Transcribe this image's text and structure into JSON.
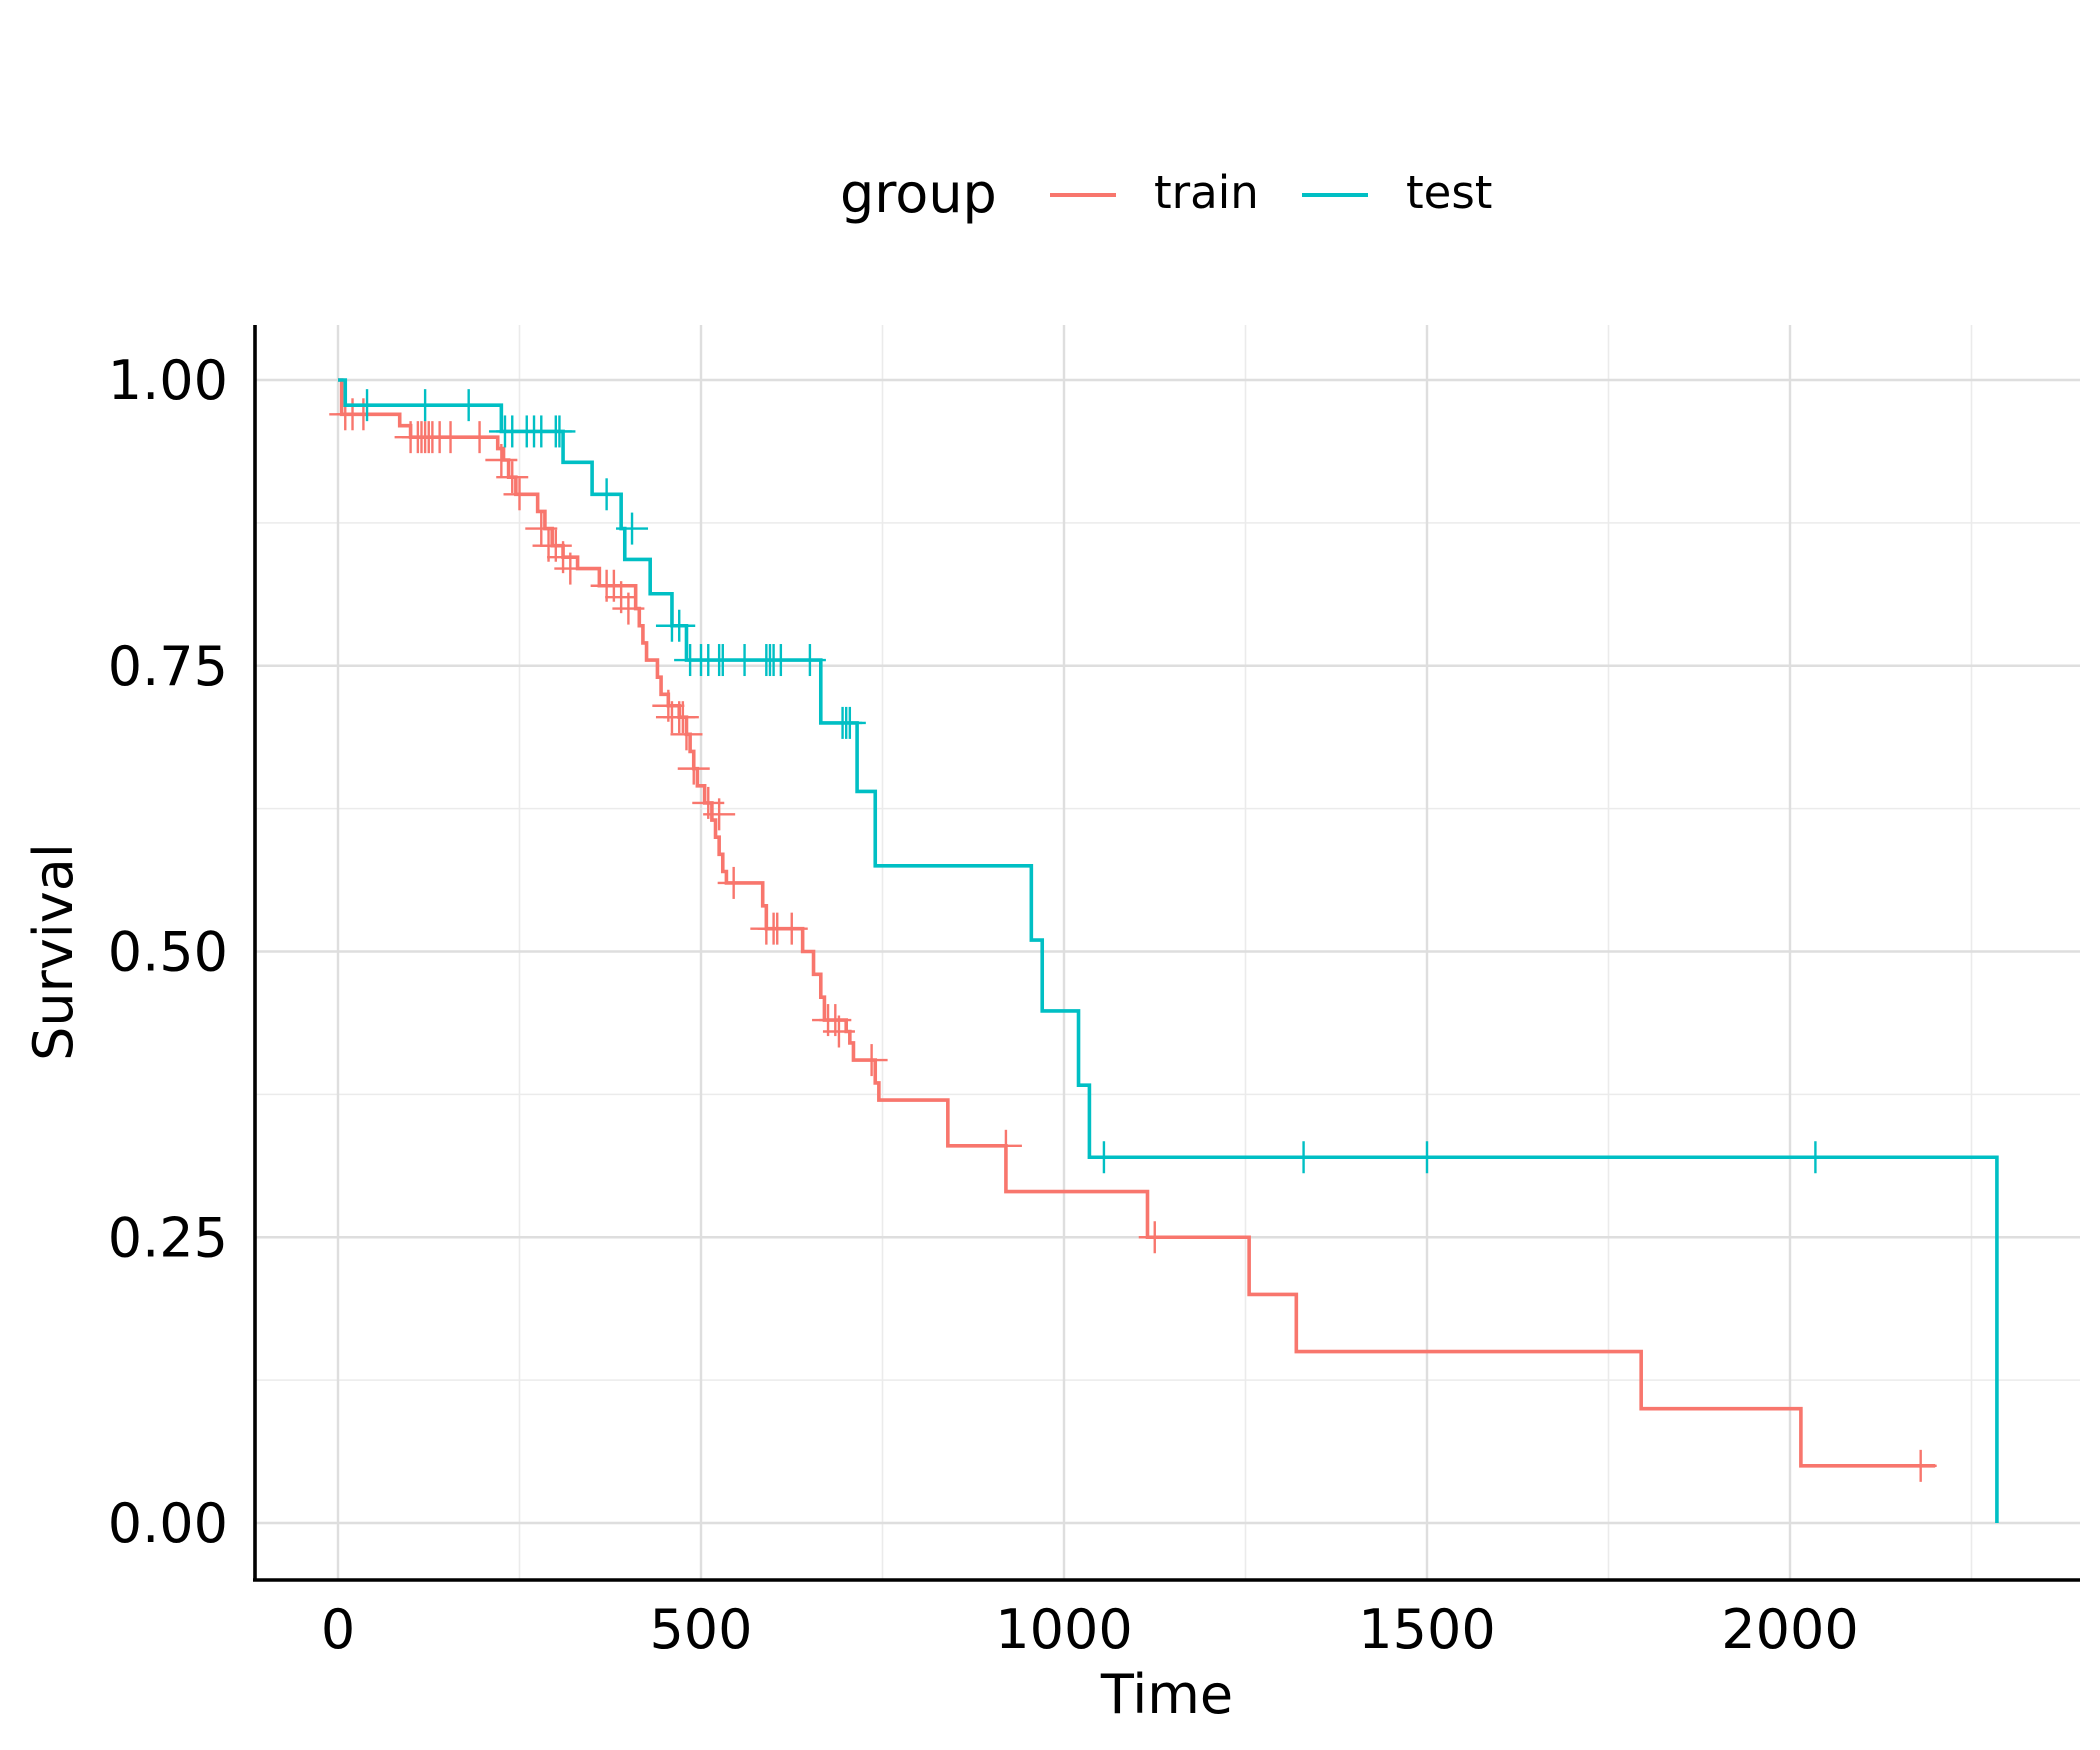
{
  "chart_data": {
    "type": "line",
    "step": true,
    "xlabel": "Time",
    "ylabel": "Survival",
    "xlim": [
      -115,
      2380
    ],
    "ylim": [
      -0.05,
      1.05
    ],
    "xticks": [
      0,
      500,
      1000,
      1500,
      2000
    ],
    "xtick_labels": [
      "0",
      "500",
      "1000",
      "1500",
      "2000"
    ],
    "yticks": [
      0,
      0.25,
      0.5,
      0.75,
      1.0
    ],
    "ytick_labels": [
      "0.00",
      "0.25",
      "0.50",
      "0.75",
      "1.00"
    ],
    "grid": true,
    "legend": {
      "title": "group",
      "position": "top"
    },
    "series": [
      {
        "name": "train",
        "color": "#F8766D",
        "steps": [
          [
            0,
            1.0
          ],
          [
            5,
            0.97
          ],
          [
            85,
            0.96
          ],
          [
            100,
            0.95
          ],
          [
            220,
            0.94
          ],
          [
            228,
            0.93
          ],
          [
            235,
            0.915
          ],
          [
            245,
            0.9
          ],
          [
            275,
            0.885
          ],
          [
            285,
            0.87
          ],
          [
            295,
            0.855
          ],
          [
            310,
            0.845
          ],
          [
            330,
            0.835
          ],
          [
            360,
            0.82
          ],
          [
            410,
            0.8
          ],
          [
            415,
            0.785
          ],
          [
            420,
            0.77
          ],
          [
            425,
            0.755
          ],
          [
            440,
            0.74
          ],
          [
            445,
            0.725
          ],
          [
            455,
            0.715
          ],
          [
            470,
            0.705
          ],
          [
            480,
            0.69
          ],
          [
            485,
            0.675
          ],
          [
            490,
            0.66
          ],
          [
            495,
            0.645
          ],
          [
            505,
            0.63
          ],
          [
            515,
            0.615
          ],
          [
            520,
            0.6
          ],
          [
            525,
            0.585
          ],
          [
            530,
            0.57
          ],
          [
            535,
            0.56
          ],
          [
            585,
            0.54
          ],
          [
            590,
            0.52
          ],
          [
            640,
            0.5
          ],
          [
            655,
            0.48
          ],
          [
            665,
            0.46
          ],
          [
            670,
            0.44
          ],
          [
            700,
            0.43
          ],
          [
            705,
            0.42
          ],
          [
            710,
            0.405
          ],
          [
            740,
            0.385
          ],
          [
            745,
            0.37
          ],
          [
            840,
            0.33
          ],
          [
            920,
            0.29
          ],
          [
            1115,
            0.25
          ],
          [
            1255,
            0.2
          ],
          [
            1320,
            0.15
          ],
          [
            1795,
            0.1
          ],
          [
            2015,
            0.05
          ]
        ],
        "end": 2200,
        "censored": [
          [
            10,
            0.97
          ],
          [
            20,
            0.97
          ],
          [
            35,
            0.97
          ],
          [
            100,
            0.95
          ],
          [
            110,
            0.95
          ],
          [
            115,
            0.95
          ],
          [
            120,
            0.95
          ],
          [
            125,
            0.95
          ],
          [
            130,
            0.95
          ],
          [
            140,
            0.95
          ],
          [
            155,
            0.95
          ],
          [
            195,
            0.95
          ],
          [
            225,
            0.93
          ],
          [
            240,
            0.915
          ],
          [
            250,
            0.9
          ],
          [
            280,
            0.87
          ],
          [
            290,
            0.855
          ],
          [
            300,
            0.855
          ],
          [
            310,
            0.845
          ],
          [
            320,
            0.835
          ],
          [
            370,
            0.82
          ],
          [
            380,
            0.82
          ],
          [
            390,
            0.81
          ],
          [
            400,
            0.8
          ],
          [
            455,
            0.715
          ],
          [
            460,
            0.705
          ],
          [
            470,
            0.705
          ],
          [
            475,
            0.705
          ],
          [
            480,
            0.69
          ],
          [
            490,
            0.66
          ],
          [
            510,
            0.63
          ],
          [
            525,
            0.62
          ],
          [
            545,
            0.56
          ],
          [
            590,
            0.52
          ],
          [
            600,
            0.52
          ],
          [
            605,
            0.52
          ],
          [
            625,
            0.52
          ],
          [
            675,
            0.44
          ],
          [
            685,
            0.44
          ],
          [
            690,
            0.43
          ],
          [
            735,
            0.405
          ],
          [
            920,
            0.33
          ],
          [
            1125,
            0.25
          ],
          [
            2180,
            0.05
          ]
        ]
      },
      {
        "name": "test",
        "color": "#00BFC4",
        "steps": [
          [
            0,
            1.0
          ],
          [
            10,
            0.978
          ],
          [
            225,
            0.955
          ],
          [
            310,
            0.928
          ],
          [
            350,
            0.9
          ],
          [
            390,
            0.87
          ],
          [
            395,
            0.843
          ],
          [
            430,
            0.813
          ],
          [
            460,
            0.785
          ],
          [
            480,
            0.755
          ],
          [
            665,
            0.7
          ],
          [
            715,
            0.64
          ],
          [
            740,
            0.575
          ],
          [
            955,
            0.51
          ],
          [
            970,
            0.448
          ],
          [
            1020,
            0.383
          ],
          [
            1035,
            0.32
          ],
          [
            2285,
            0.0
          ]
        ],
        "end": 2285,
        "censored": [
          [
            40,
            0.978
          ],
          [
            120,
            0.978
          ],
          [
            180,
            0.978
          ],
          [
            230,
            0.955
          ],
          [
            240,
            0.955
          ],
          [
            260,
            0.955
          ],
          [
            270,
            0.955
          ],
          [
            280,
            0.955
          ],
          [
            300,
            0.955
          ],
          [
            305,
            0.955
          ],
          [
            370,
            0.9
          ],
          [
            405,
            0.87
          ],
          [
            460,
            0.785
          ],
          [
            470,
            0.785
          ],
          [
            485,
            0.755
          ],
          [
            500,
            0.755
          ],
          [
            510,
            0.755
          ],
          [
            525,
            0.755
          ],
          [
            530,
            0.755
          ],
          [
            560,
            0.755
          ],
          [
            590,
            0.755
          ],
          [
            595,
            0.755
          ],
          [
            600,
            0.755
          ],
          [
            610,
            0.755
          ],
          [
            650,
            0.755
          ],
          [
            695,
            0.7
          ],
          [
            700,
            0.7
          ],
          [
            705,
            0.7
          ],
          [
            1055,
            0.32
          ],
          [
            1330,
            0.32
          ],
          [
            1500,
            0.32
          ],
          [
            2035,
            0.32
          ]
        ]
      }
    ]
  }
}
